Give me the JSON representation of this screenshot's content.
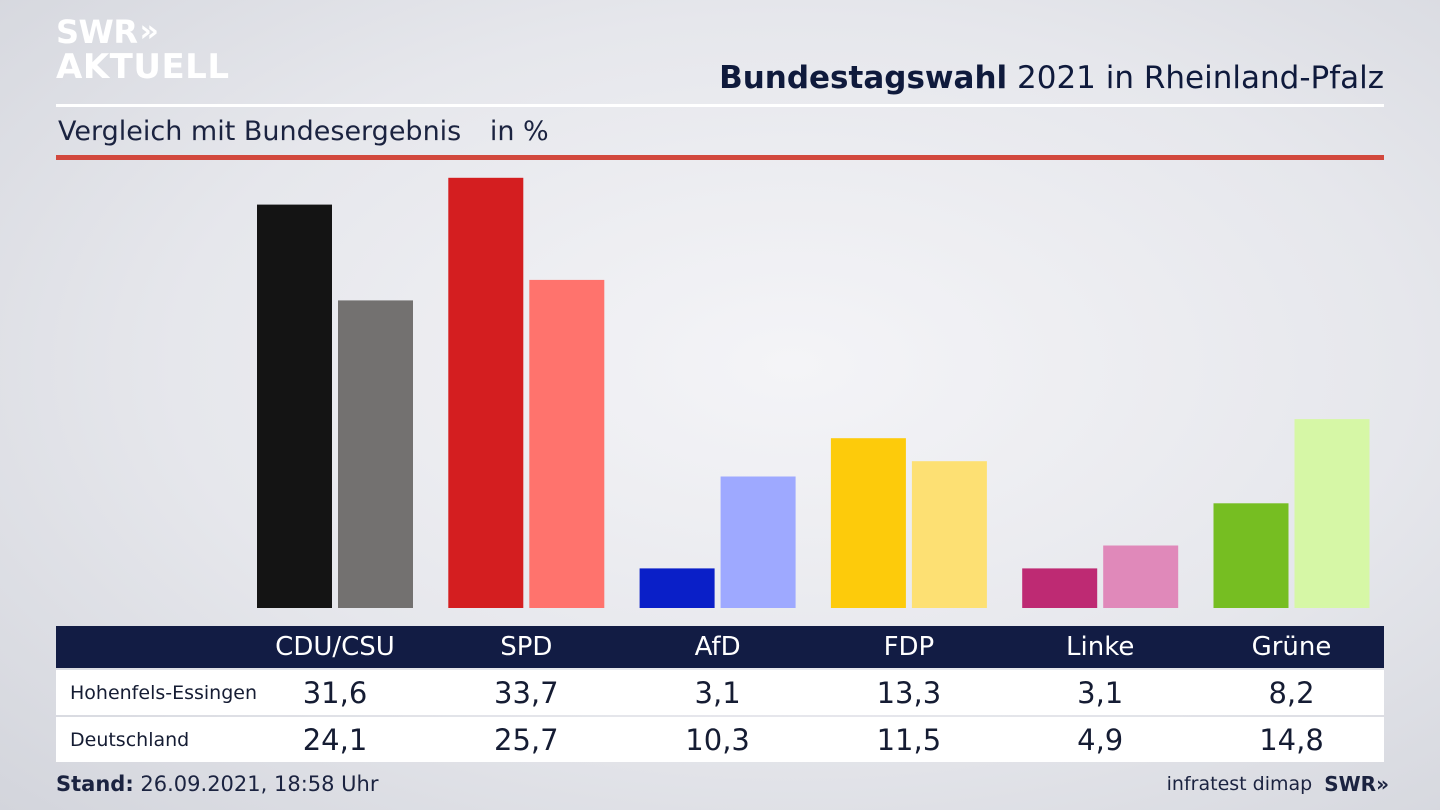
{
  "brand": {
    "top": "SWR",
    "chevrons": "»",
    "bottom": "AKTUELL"
  },
  "header": {
    "title_bold": "Bundestagswahl",
    "title_rest": " 2021 in Rheinland-Pfalz",
    "subtitle": "Vergleich mit Bundesergebnis",
    "unit": "in %"
  },
  "chart_data": {
    "type": "bar",
    "categories": [
      "CDU/CSU",
      "SPD",
      "AfD",
      "FDP",
      "Linke",
      "Grüne"
    ],
    "series": [
      {
        "name": "Hohenfels-Essingen",
        "values": [
          31.6,
          33.7,
          3.1,
          13.3,
          3.1,
          8.2
        ],
        "display": [
          "31,6",
          "33,7",
          "3,1",
          "13,3",
          "3,1",
          "8,2"
        ],
        "colors": [
          "#141414",
          "#d41e20",
          "#0a1fc8",
          "#fdcb0b",
          "#be2a73",
          "#76be22"
        ]
      },
      {
        "name": "Deutschland",
        "values": [
          24.1,
          25.7,
          10.3,
          11.5,
          4.9,
          14.8
        ],
        "display": [
          "24,1",
          "25,7",
          "10,3",
          "11,5",
          "4,9",
          "14,8"
        ],
        "colors": [
          "#737170",
          "#ff736d",
          "#9ea9ff",
          "#fde073",
          "#e089ba",
          "#d6f7a6"
        ]
      }
    ],
    "ylim": [
      0,
      34
    ],
    "grid": false,
    "legend": "table-bottom"
  },
  "footer": {
    "stand_label": "Stand:",
    "stand_value": " 26.09.2021, 18:58 Uhr",
    "source": "infratest dimap",
    "brand": "SWR",
    "brand_chevrons": "»"
  }
}
